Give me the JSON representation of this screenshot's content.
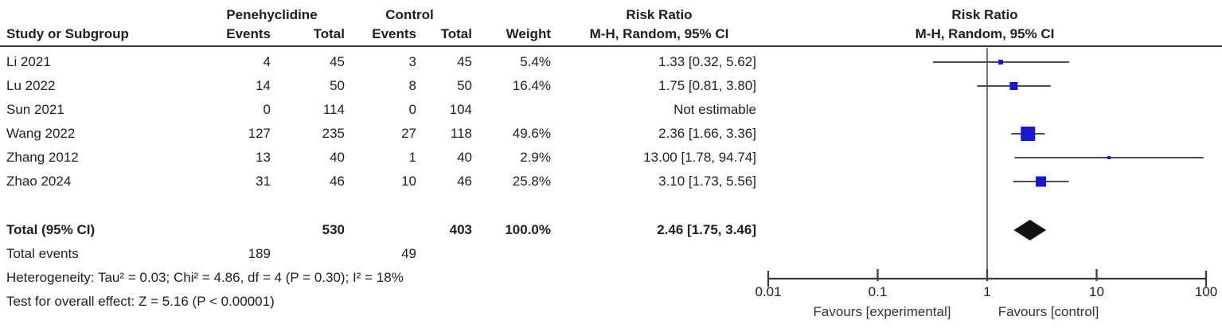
{
  "header": {
    "treatment_group": "Penehyclidine",
    "control_group": "Control",
    "risk_ratio_text_col": "Risk Ratio",
    "risk_ratio_plot_col": "Risk Ratio",
    "study_col": "Study or Subgroup",
    "events_col_1": "Events",
    "total_col_1": "Total",
    "events_col_2": "Events",
    "total_col_2": "Total",
    "weight_col": "Weight",
    "mh_text_col": "M-H, Random, 95% CI",
    "mh_plot_col": "M-H, Random, 95% CI"
  },
  "footer": {
    "total_label": "Total (95% CI)",
    "total_treatment_n": "530",
    "total_control_n": "403",
    "total_weight": "100.0%",
    "total_rr": "2.46 [1.75, 3.46]",
    "total_events_label": "Total events",
    "total_events_treatment": "189",
    "total_events_control": "49",
    "heterogeneity": "Heterogeneity: Tau² = 0.03; Chi² = 4.86, df = 4 (P = 0.30); I² = 18%",
    "overall_effect": "Test for overall effect: Z = 5.16 (P < 0.00001)",
    "favours_left": "Favours [experimental]",
    "favours_right": "Favours [control]"
  },
  "chart_data": {
    "type": "forest",
    "effect_measure": "Risk Ratio, M-H, Random, 95% CI",
    "x_axis": {
      "scale": "log",
      "min": 0.01,
      "max": 100,
      "ticks": [
        0.01,
        0.1,
        1,
        10,
        100
      ],
      "tick_labels": [
        "0.01",
        "0.1",
        "1",
        "10",
        "100"
      ]
    },
    "studies": [
      {
        "study": "Li 2021",
        "events_t": "4",
        "total_t": "45",
        "events_c": "3",
        "total_c": "45",
        "weight": "5.4%",
        "weight_pct": 5.4,
        "rr_text": "1.33 [0.32, 5.62]",
        "est": 1.33,
        "lo": 0.32,
        "hi": 5.62
      },
      {
        "study": "Lu 2022",
        "events_t": "14",
        "total_t": "50",
        "events_c": "8",
        "total_c": "50",
        "weight": "16.4%",
        "weight_pct": 16.4,
        "rr_text": "1.75 [0.81, 3.80]",
        "est": 1.75,
        "lo": 0.81,
        "hi": 3.8
      },
      {
        "study": "Sun 2021",
        "events_t": "0",
        "total_t": "114",
        "events_c": "0",
        "total_c": "104",
        "weight": "",
        "weight_pct": null,
        "rr_text": "Not estimable",
        "est": null,
        "lo": null,
        "hi": null
      },
      {
        "study": "Wang 2022",
        "events_t": "127",
        "total_t": "235",
        "events_c": "27",
        "total_c": "118",
        "weight": "49.6%",
        "weight_pct": 49.6,
        "rr_text": "2.36 [1.66, 3.36]",
        "est": 2.36,
        "lo": 1.66,
        "hi": 3.36
      },
      {
        "study": "Zhang 2012",
        "events_t": "13",
        "total_t": "40",
        "events_c": "1",
        "total_c": "40",
        "weight": "2.9%",
        "weight_pct": 2.9,
        "rr_text": "13.00 [1.78, 94.74]",
        "est": 13.0,
        "lo": 1.78,
        "hi": 94.74
      },
      {
        "study": "Zhao 2024",
        "events_t": "31",
        "total_t": "46",
        "events_c": "10",
        "total_c": "46",
        "weight": "25.8%",
        "weight_pct": 25.8,
        "rr_text": "3.10 [1.73, 5.56]",
        "est": 3.1,
        "lo": 1.73,
        "hi": 5.56
      }
    ],
    "summary": {
      "est": 2.46,
      "lo": 1.75,
      "hi": 3.46
    },
    "colors": {
      "square": "#1818cc",
      "diamond": "#111111",
      "ci_line": "#4d4d4d",
      "axis": "#3a3a3a",
      "text": "#1f1f1f"
    }
  }
}
